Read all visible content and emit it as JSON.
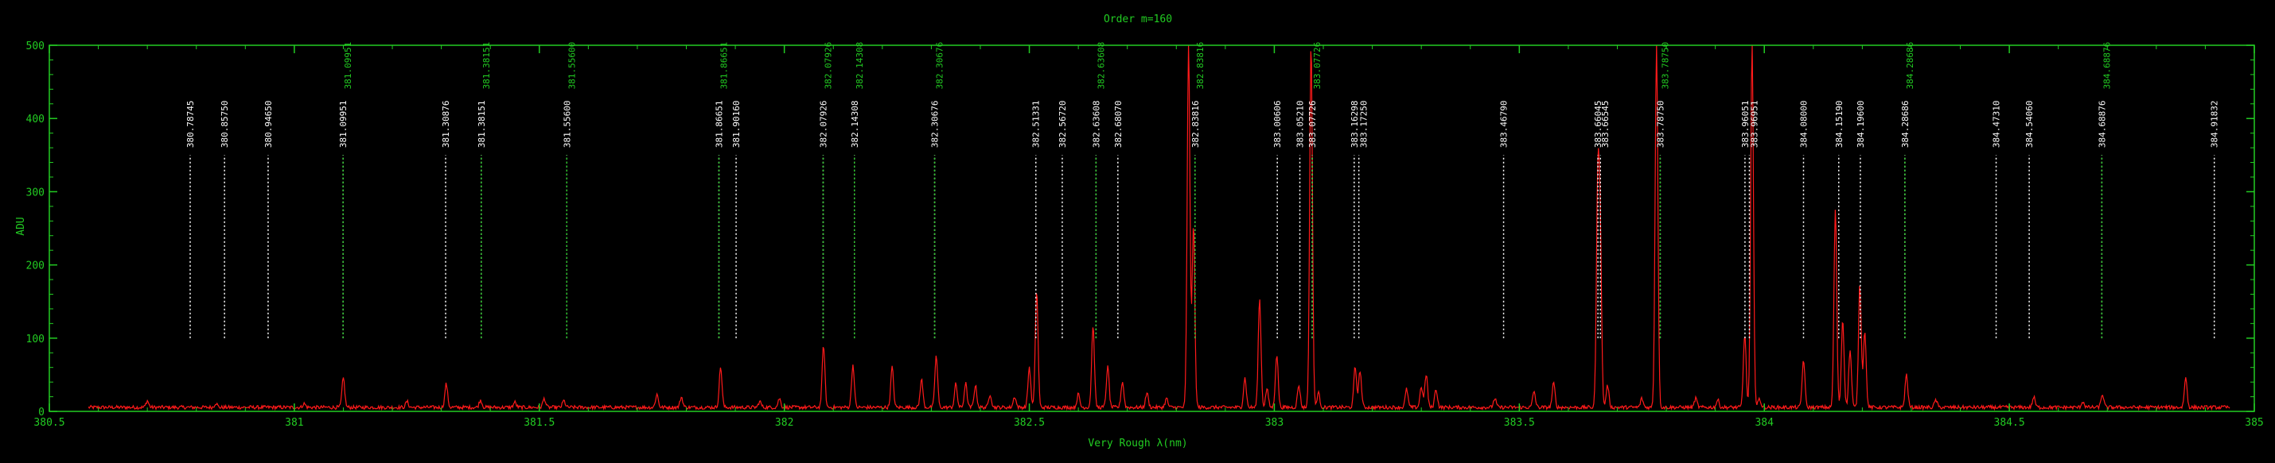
{
  "chart_data": {
    "type": "line",
    "title": "Order m=160",
    "xlabel": "Very Rough λ(nm)",
    "ylabel": "ADU",
    "xlim": [
      380.5,
      385
    ],
    "ylim": [
      0,
      500
    ],
    "x_ticks": [
      "380.5",
      "381",
      "381.5",
      "382",
      "382.5",
      "383",
      "383.5",
      "384",
      "384.5",
      "385"
    ],
    "y_ticks": [
      "0",
      "100",
      "200",
      "300",
      "400",
      "500"
    ],
    "colors": {
      "spectrum": "#ff1a1a",
      "axis": "#22cc22",
      "line_id": "#ffffff",
      "line_id_green": "#22cc22",
      "background": "#000000"
    },
    "series": [
      {
        "peaks": [
          [
            380.7,
            9
          ],
          [
            380.84,
            6
          ],
          [
            381.02,
            5
          ],
          [
            381.1,
            40
          ],
          [
            381.23,
            8
          ],
          [
            381.31,
            32
          ],
          [
            381.38,
            10
          ],
          [
            381.45,
            7
          ],
          [
            381.51,
            12
          ],
          [
            381.55,
            9
          ],
          [
            381.74,
            18
          ],
          [
            381.79,
            14
          ],
          [
            381.87,
            55
          ],
          [
            381.95,
            8
          ],
          [
            381.99,
            12
          ],
          [
            382.08,
            85
          ],
          [
            382.14,
            58
          ],
          [
            382.22,
            55
          ],
          [
            382.28,
            38
          ],
          [
            382.31,
            70
          ],
          [
            382.35,
            32
          ],
          [
            382.37,
            33
          ],
          [
            382.39,
            30
          ],
          [
            382.42,
            18
          ],
          [
            382.47,
            15
          ],
          [
            382.5,
            55
          ],
          [
            382.515,
            160
          ],
          [
            382.6,
            18
          ],
          [
            382.63,
            112
          ],
          [
            382.66,
            55
          ],
          [
            382.69,
            35
          ],
          [
            382.74,
            20
          ],
          [
            382.78,
            12
          ],
          [
            382.825,
            500
          ],
          [
            382.835,
            250
          ],
          [
            382.94,
            40
          ],
          [
            382.97,
            148
          ],
          [
            382.985,
            25
          ],
          [
            383.005,
            72
          ],
          [
            383.05,
            30
          ],
          [
            383.075,
            500
          ],
          [
            383.09,
            20
          ],
          [
            383.165,
            55
          ],
          [
            383.175,
            50
          ],
          [
            383.27,
            25
          ],
          [
            383.3,
            28
          ],
          [
            383.31,
            45
          ],
          [
            383.33,
            25
          ],
          [
            383.45,
            12
          ],
          [
            383.53,
            22
          ],
          [
            383.57,
            33
          ],
          [
            383.66,
            290
          ],
          [
            383.665,
            230
          ],
          [
            383.68,
            30
          ],
          [
            383.75,
            12
          ],
          [
            383.78,
            500
          ],
          [
            383.86,
            12
          ],
          [
            383.905,
            10
          ],
          [
            383.96,
            100
          ],
          [
            383.975,
            500
          ],
          [
            383.99,
            12
          ],
          [
            384.08,
            65
          ],
          [
            384.145,
            270
          ],
          [
            384.16,
            120
          ],
          [
            384.175,
            78
          ],
          [
            384.195,
            168
          ],
          [
            384.205,
            105
          ],
          [
            384.29,
            45
          ],
          [
            384.35,
            10
          ],
          [
            384.55,
            14
          ],
          [
            384.65,
            8
          ],
          [
            384.69,
            18
          ],
          [
            384.86,
            40
          ]
        ]
      }
    ],
    "line_ids": [
      {
        "x": 380.78745,
        "label": "380.78745",
        "color": "white"
      },
      {
        "x": 380.8575,
        "label": "380.85750",
        "color": "white"
      },
      {
        "x": 380.9465,
        "label": "380.94650",
        "color": "white"
      },
      {
        "x": 381.09951,
        "label": "381.09951",
        "color": "white"
      },
      {
        "x": 381.09951,
        "label": "381.09951",
        "color": "green"
      },
      {
        "x": 381.30876,
        "label": "381.30876",
        "color": "white"
      },
      {
        "x": 381.38151,
        "label": "381.38151",
        "color": "white"
      },
      {
        "x": 381.38151,
        "label": "381.38151",
        "color": "green"
      },
      {
        "x": 381.556,
        "label": "381.55600",
        "color": "white"
      },
      {
        "x": 381.556,
        "label": "381.55600",
        "color": "green"
      },
      {
        "x": 381.86651,
        "label": "381.86651",
        "color": "white"
      },
      {
        "x": 381.86651,
        "label": "381.86651",
        "color": "green"
      },
      {
        "x": 381.9016,
        "label": "381.90160",
        "color": "white"
      },
      {
        "x": 382.07926,
        "label": "382.07926",
        "color": "white"
      },
      {
        "x": 382.07926,
        "label": "382.07926",
        "color": "green"
      },
      {
        "x": 382.14308,
        "label": "382.14308",
        "color": "white"
      },
      {
        "x": 382.14308,
        "label": "382.14308",
        "color": "green"
      },
      {
        "x": 382.30676,
        "label": "382.30676",
        "color": "white"
      },
      {
        "x": 382.30676,
        "label": "382.30676",
        "color": "green"
      },
      {
        "x": 382.51331,
        "label": "382.51331",
        "color": "white"
      },
      {
        "x": 382.5672,
        "label": "382.56720",
        "color": "white"
      },
      {
        "x": 382.63608,
        "label": "382.63608",
        "color": "white"
      },
      {
        "x": 382.63608,
        "label": "382.63608",
        "color": "green"
      },
      {
        "x": 382.6807,
        "label": "382.68070",
        "color": "white"
      },
      {
        "x": 382.83816,
        "label": "382.83816",
        "color": "white"
      },
      {
        "x": 382.83816,
        "label": "382.83816",
        "color": "green"
      },
      {
        "x": 383.00606,
        "label": "383.00606",
        "color": "white"
      },
      {
        "x": 383.0521,
        "label": "383.05210",
        "color": "white"
      },
      {
        "x": 383.07726,
        "label": "383.07726",
        "color": "white"
      },
      {
        "x": 383.07726,
        "label": "383.07726",
        "color": "green"
      },
      {
        "x": 383.16298,
        "label": "383.16298",
        "color": "white"
      },
      {
        "x": 383.1725,
        "label": "383.17250",
        "color": "white"
      },
      {
        "x": 383.4679,
        "label": "383.46790",
        "color": "white"
      },
      {
        "x": 383.66045,
        "label": "383.66045",
        "color": "white"
      },
      {
        "x": 383.66545,
        "label": "383.66545",
        "color": "white"
      },
      {
        "x": 383.7875,
        "label": "383.78750",
        "color": "white"
      },
      {
        "x": 383.7875,
        "label": "383.78750",
        "color": "green"
      },
      {
        "x": 383.96051,
        "label": "383.96051",
        "color": "white"
      },
      {
        "x": 383.96951,
        "label": "383.96951",
        "color": "white"
      },
      {
        "x": 384.08,
        "label": "384.08000",
        "color": "white"
      },
      {
        "x": 384.1519,
        "label": "384.15190",
        "color": "white"
      },
      {
        "x": 384.196,
        "label": "384.19600",
        "color": "white"
      },
      {
        "x": 384.28686,
        "label": "384.28686",
        "color": "white"
      },
      {
        "x": 384.28686,
        "label": "384.28686",
        "color": "green"
      },
      {
        "x": 384.4731,
        "label": "384.47310",
        "color": "white"
      },
      {
        "x": 384.5406,
        "label": "384.54060",
        "color": "white"
      },
      {
        "x": 384.68876,
        "label": "384.68876",
        "color": "white"
      },
      {
        "x": 384.68876,
        "label": "384.68876",
        "color": "green"
      },
      {
        "x": 384.91832,
        "label": "384.91832",
        "color": "white"
      }
    ],
    "grid": false
  }
}
